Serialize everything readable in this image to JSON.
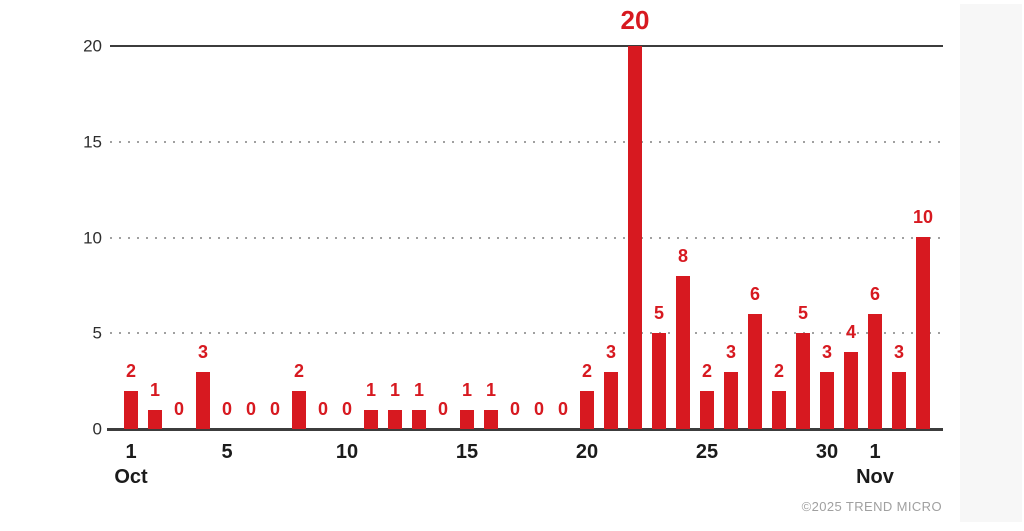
{
  "page": {
    "footer": "©2025 TREND MICRO"
  },
  "colors": {
    "bar": "#d71920",
    "value_label": "#d71920",
    "axis_line": "#3c3c3c",
    "grid_dot": "#a0a0a0",
    "xtick_label": "#1b1b1b",
    "ytick_label": "#2e2e2e",
    "footer_text": "#a0a0a0"
  },
  "chart_data": {
    "type": "bar",
    "title": "",
    "xlabel": "",
    "ylabel": "",
    "legend": "none",
    "grid": "horizontal dotted lines at 5, 10, 15; solid line at 20; solid baseline at 0",
    "ylim": [
      0,
      20
    ],
    "yticks": [
      0,
      5,
      10,
      15,
      20
    ],
    "x": [
      "Oct 1",
      "Oct 2",
      "Oct 3",
      "Oct 4",
      "Oct 5",
      "Oct 6",
      "Oct 7",
      "Oct 8",
      "Oct 9",
      "Oct 10",
      "Oct 11",
      "Oct 12",
      "Oct 13",
      "Oct 14",
      "Oct 15",
      "Oct 16",
      "Oct 17",
      "Oct 18",
      "Oct 19",
      "Oct 20",
      "Oct 21",
      "Oct 22",
      "Oct 23",
      "Oct 24",
      "Oct 25",
      "Oct 26",
      "Oct 27",
      "Oct 28",
      "Oct 29",
      "Oct 30",
      "Oct 31",
      "Nov 1",
      "Nov 2",
      "Nov 3"
    ],
    "values": [
      2,
      1,
      0,
      3,
      0,
      0,
      0,
      2,
      0,
      0,
      1,
      1,
      1,
      0,
      1,
      1,
      0,
      0,
      0,
      2,
      3,
      20,
      5,
      8,
      2,
      3,
      6,
      2,
      5,
      3,
      4,
      6,
      3,
      10
    ],
    "value_labels": "red number above each bar; maximum value 20 shown larger",
    "xticks": [
      {
        "day_index": 0,
        "label": "1"
      },
      {
        "day_index": 4,
        "label": "5"
      },
      {
        "day_index": 9,
        "label": "10"
      },
      {
        "day_index": 14,
        "label": "15"
      },
      {
        "day_index": 19,
        "label": "20"
      },
      {
        "day_index": 24,
        "label": "25"
      },
      {
        "day_index": 29,
        "label": "30"
      },
      {
        "day_index": 31,
        "label": "1"
      }
    ],
    "month_labels": [
      {
        "day_index": 0,
        "label": "Oct"
      },
      {
        "day_index": 31,
        "label": "Nov"
      }
    ]
  }
}
